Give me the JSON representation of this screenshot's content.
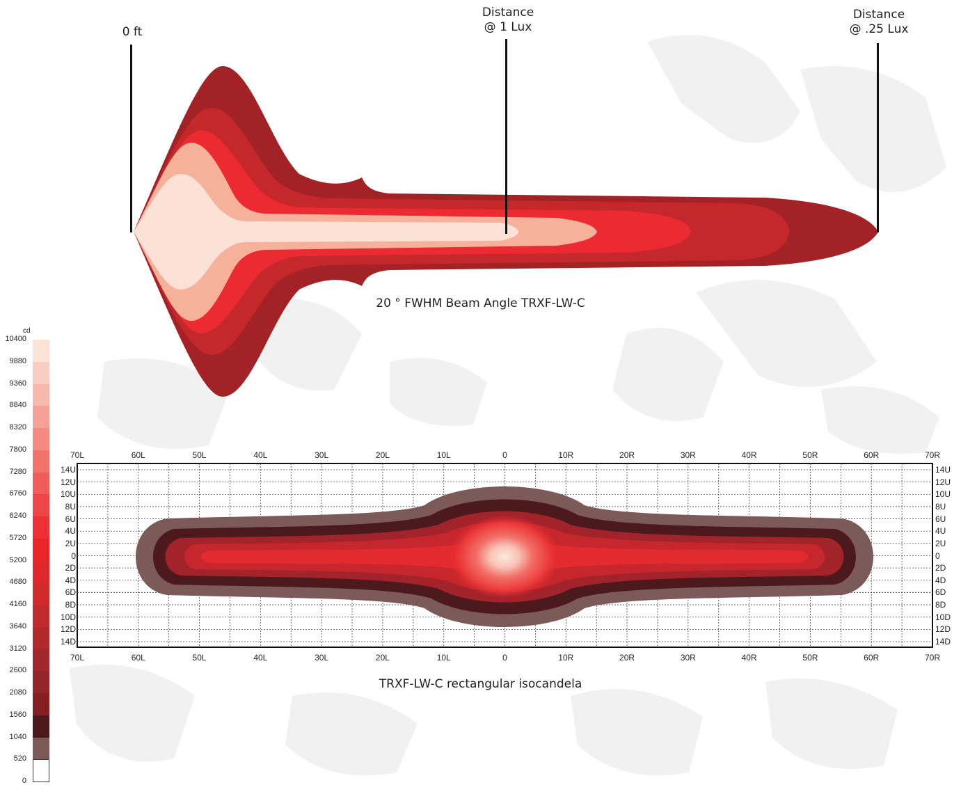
{
  "beam": {
    "labels": [
      {
        "text": "0 ft"
      },
      {
        "text": "Distance\n@ 1 Lux"
      },
      {
        "text": "Distance\n@ .25 Lux"
      }
    ],
    "title": "20 ° FWHM Beam Angle TRXF-LW-C"
  },
  "isocandela": {
    "title": "TRXF-LW-C rectangular isocandela"
  },
  "scale": {
    "unit": "cd",
    "ticks": [
      "10400",
      "9880",
      "9360",
      "8840",
      "8320",
      "7800",
      "7280",
      "6760",
      "6240",
      "5720",
      "5200",
      "4680",
      "4160",
      "3640",
      "3120",
      "2600",
      "2080",
      "1560",
      "1040",
      "520",
      "0"
    ],
    "colors": [
      "#fce3d7",
      "#f9cec2",
      "#f8b8ae",
      "#f6a197",
      "#f48a81",
      "#f2726c",
      "#f05c5a",
      "#ee4547",
      "#ec3034",
      "#e92528",
      "#e0272a",
      "#d02a2d",
      "#c02b2e",
      "#b02a2d",
      "#a0282c",
      "#942529",
      "#861f23",
      "#4c1a1c",
      "#7b5a58",
      "#ffffff"
    ]
  },
  "chart_data": [
    {
      "type": "area",
      "title": "20 ° FWHM Beam Angle TRXF-LW-C",
      "markers": [
        "0 ft",
        "Distance @ 1 Lux",
        "Distance @ .25 Lux"
      ]
    },
    {
      "type": "heatmap",
      "title": "TRXF-LW-C rectangular isocandela",
      "x_ticks": [
        "70L",
        "60L",
        "50L",
        "40L",
        "30L",
        "20L",
        "10L",
        "0",
        "10R",
        "20R",
        "30R",
        "40R",
        "50R",
        "60R",
        "70R"
      ],
      "y_ticks_left": [
        "14U",
        "12U",
        "10U",
        "8U",
        "6U",
        "4U",
        "2U",
        "0",
        "2D",
        "4D",
        "6D",
        "8D",
        "10D",
        "12D",
        "14D"
      ],
      "y_ticks_right": [
        "14U",
        "12U",
        "10U",
        "8U",
        "6U",
        "4U",
        "2U",
        "0",
        "2D",
        "4D",
        "6D",
        "8D",
        "10D",
        "12D",
        "14D"
      ],
      "unit": "cd",
      "value_range": [
        0,
        10400
      ]
    }
  ]
}
